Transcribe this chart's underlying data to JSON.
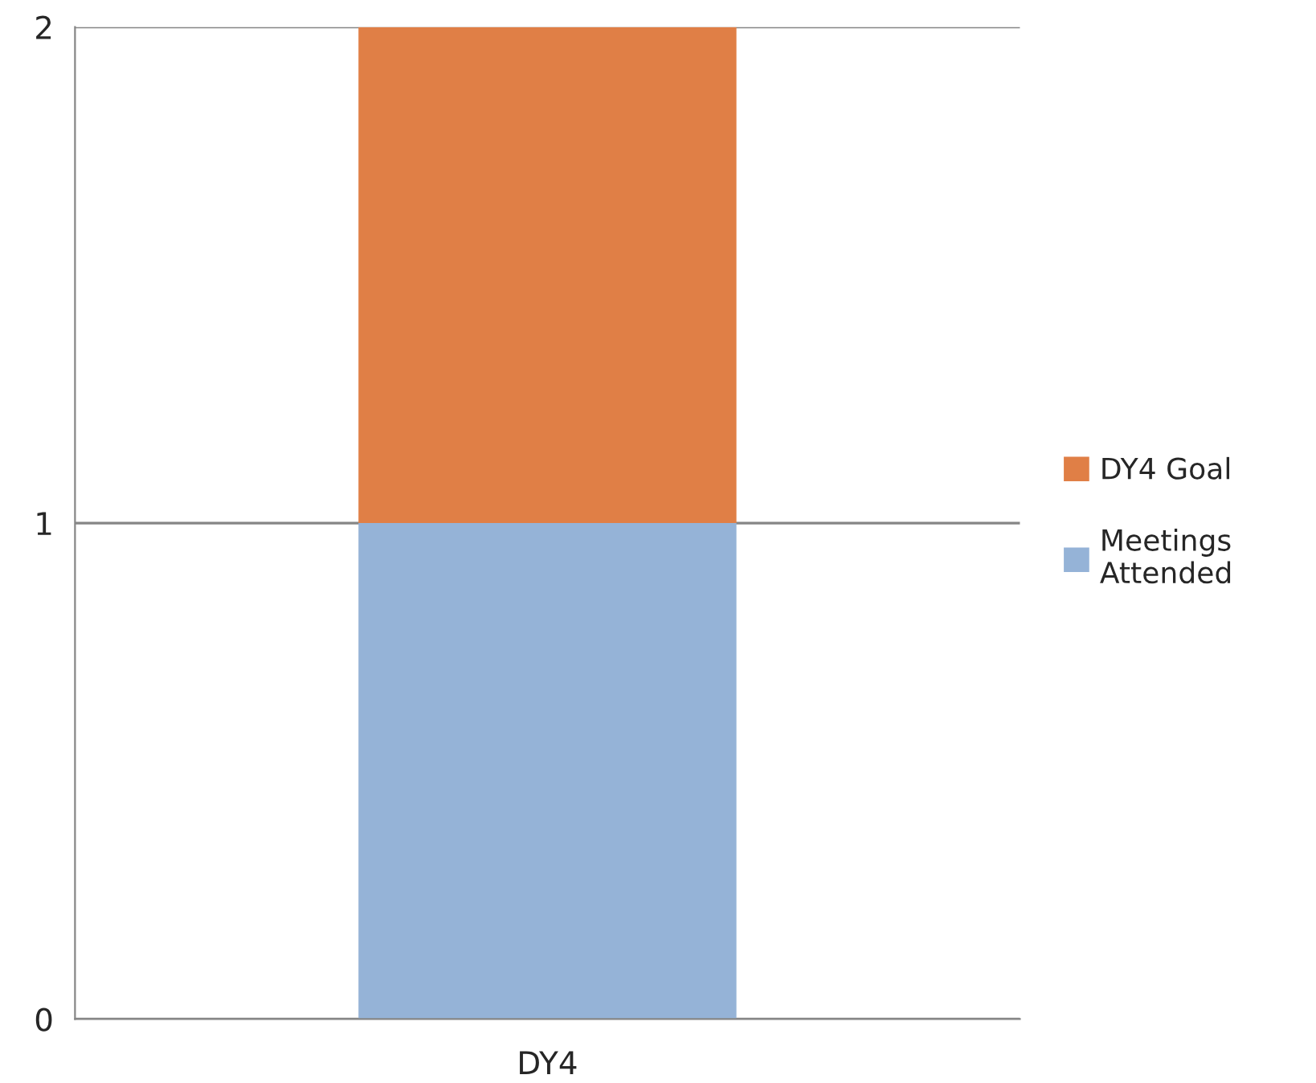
{
  "chart_data": {
    "type": "bar",
    "stacked": true,
    "categories": [
      "DY4"
    ],
    "series": [
      {
        "name": "Meetings\nAttended",
        "color": "#95b3d7",
        "values": [
          1
        ]
      },
      {
        "name": "DY4 Goal",
        "color": "#e07f46",
        "values": [
          1
        ]
      }
    ],
    "ylim": [
      0,
      2
    ],
    "yticks": [
      0,
      1,
      2
    ],
    "grid": "y",
    "legend": "right"
  }
}
